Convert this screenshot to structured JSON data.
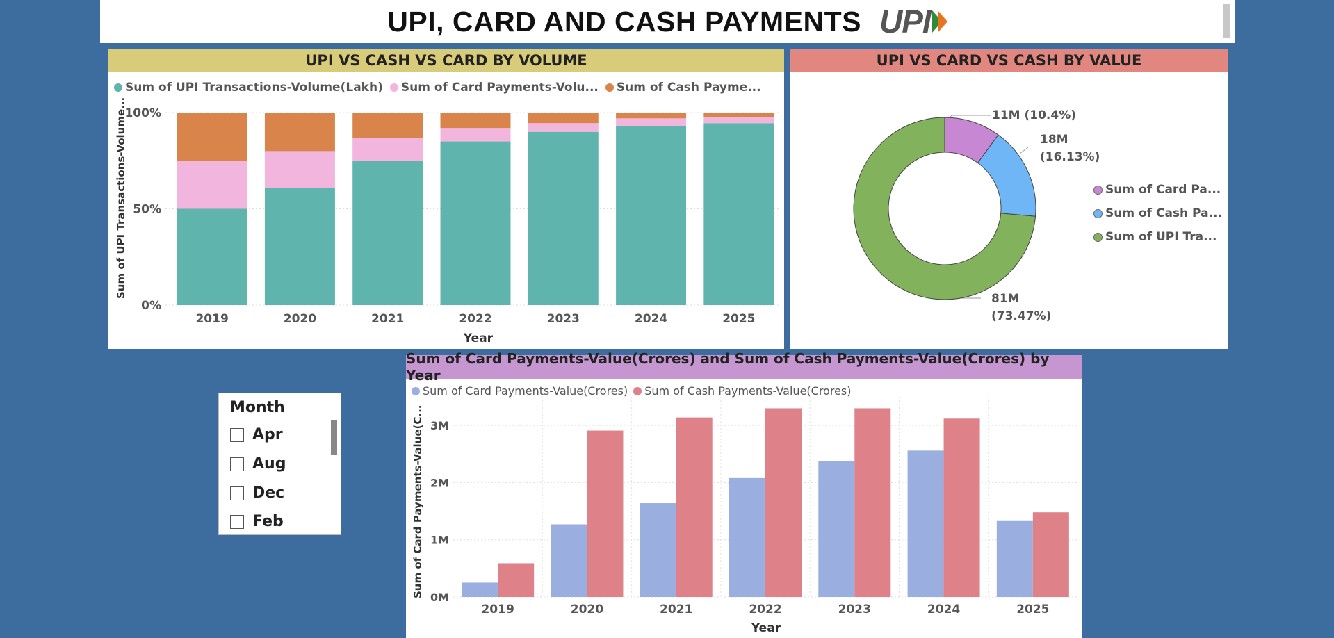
{
  "header": {
    "title": "UPI, CARD AND CASH PAYMENTS",
    "logo_text": "UPI"
  },
  "volume_panel": {
    "title": "UPI VS CASH VS CARD BY VOLUME",
    "legend": [
      {
        "label": "Sum of UPI Transactions-Volume(Lakh)",
        "color": "#5fb4ae"
      },
      {
        "label": "Sum of Card Payments-Volu...",
        "color": "#f2b5de"
      },
      {
        "label": "Sum of Cash Payme...",
        "color": "#d9844a"
      }
    ],
    "ylabel": "Sum of UPI Transactions-Volume...",
    "xlabel": "Year"
  },
  "value_panel": {
    "title": "UPI VS CARD VS CASH BY VALUE",
    "legend": [
      {
        "label": "Sum of Card Pa...",
        "color": "#c787d3"
      },
      {
        "label": "Sum of Cash Pa...",
        "color": "#6fb6f7"
      },
      {
        "label": "Sum of UPI Tra...",
        "color": "#82b25c"
      }
    ],
    "labels": {
      "card": "11M (10.4%)",
      "cash_line1": "18M",
      "cash_line2": "(16.13%)",
      "upi_line1": "81M",
      "upi_line2": "(73.47%)"
    }
  },
  "bar_panel": {
    "title": "Sum of Card Payments-Value(Crores) and Sum of Cash Payments-Value(Crores) by Year",
    "legend": [
      {
        "label": "Sum of Card Payments-Value(Crores)",
        "color": "#9aaee0"
      },
      {
        "label": "Sum of Cash Payments-Value(Crores)",
        "color": "#de8189"
      }
    ],
    "ylabel": "Sum of Card Payments-Value(C...",
    "xlabel": "Year"
  },
  "slicer": {
    "title": "Month",
    "items": [
      "Apr",
      "Aug",
      "Dec",
      "Feb"
    ]
  },
  "chart_data": [
    {
      "type": "bar",
      "stacked": "100%",
      "title": "UPI VS CASH VS CARD BY VOLUME",
      "xlabel": "Year",
      "ylabel": "Sum of UPI Transactions-Volume...",
      "categories": [
        "2019",
        "2020",
        "2021",
        "2022",
        "2023",
        "2024",
        "2025"
      ],
      "yticks": [
        "0%",
        "50%",
        "100%"
      ],
      "series": [
        {
          "name": "Sum of UPI Transactions-Volume(Lakh)",
          "color": "#5fb4ae",
          "values": [
            50,
            61,
            75,
            85,
            90,
            93,
            94.5
          ]
        },
        {
          "name": "Sum of Card Payments-Volu...",
          "color": "#f2b5de",
          "values": [
            25,
            19,
            12,
            7,
            4.5,
            4,
            3
          ]
        },
        {
          "name": "Sum of Cash Payme...",
          "color": "#d9844a",
          "values": [
            25,
            20,
            13,
            8,
            5.5,
            3,
            2.5
          ]
        }
      ],
      "legend": "top",
      "grid": true
    },
    {
      "type": "pie",
      "donut": true,
      "title": "UPI VS CARD VS CASH BY VALUE",
      "slices": [
        {
          "name": "Sum of Card Pa...",
          "value": 11,
          "percent": 10.4,
          "color": "#c787d3"
        },
        {
          "name": "Sum of Cash Pa...",
          "value": 18,
          "percent": 16.13,
          "color": "#6fb6f7"
        },
        {
          "name": "Sum of UPI Tra...",
          "value": 81,
          "percent": 73.47,
          "color": "#82b25c"
        }
      ],
      "legend": "right"
    },
    {
      "type": "bar",
      "title": "Sum of Card Payments-Value(Crores) and Sum of Cash Payments-Value(Crores) by Year",
      "xlabel": "Year",
      "ylabel": "Sum of Card Payments-Value(C...",
      "categories": [
        "2019",
        "2020",
        "2021",
        "2022",
        "2023",
        "2024",
        "2025"
      ],
      "yticks": [
        "0M",
        "1M",
        "2M",
        "3M"
      ],
      "ylim": [
        0,
        3500000
      ],
      "series": [
        {
          "name": "Sum of Card Payments-Value(Crores)",
          "color": "#9aaee0",
          "values": [
            250000,
            1270000,
            1640000,
            2080000,
            2370000,
            2560000,
            1340000
          ]
        },
        {
          "name": "Sum of Cash Payments-Value(Crores)",
          "color": "#de8189",
          "values": [
            590000,
            2910000,
            3140000,
            3300000,
            3300000,
            3120000,
            1480000
          ]
        }
      ],
      "legend": "top-left",
      "grid": true
    }
  ]
}
